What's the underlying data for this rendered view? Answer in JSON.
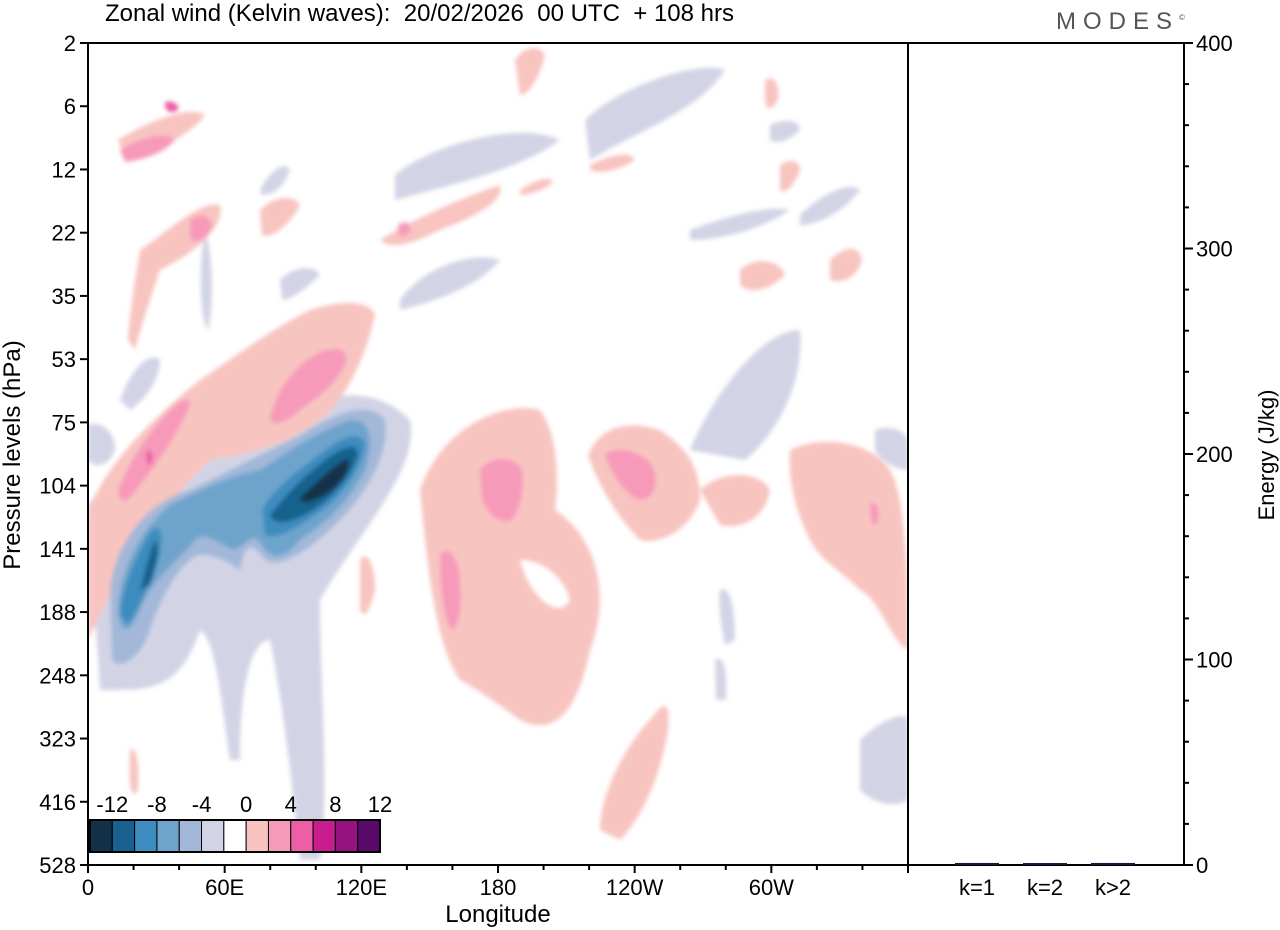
{
  "title": "Zonal wind (Kelvin waves):  20/02/2026  00 UTC  + 108 hrs",
  "logo": "MODES",
  "logo_mark": "©",
  "chart_data": [
    {
      "type": "heatmap",
      "title": "Zonal wind (Kelvin waves):  20/02/2026  00 UTC  + 108 hrs",
      "xlabel": "Longitude",
      "ylabel": "Pressure levels (hPa)",
      "x_ticks": [
        "0",
        "60E",
        "120E",
        "180",
        "120W",
        "60W"
      ],
      "x_tick_values": [
        0,
        60,
        120,
        180,
        240,
        300
      ],
      "xlim": [
        0,
        360
      ],
      "y_ticks": [
        "2",
        "6",
        "12",
        "22",
        "35",
        "53",
        "75",
        "104",
        "141",
        "188",
        "248",
        "323",
        "416",
        "528"
      ],
      "colorbar": {
        "labels": [
          "-12",
          "-8",
          "-4",
          "0",
          "4",
          "8",
          "12"
        ],
        "levels": [
          -14,
          -12,
          -10,
          -8,
          -6,
          -4,
          -2,
          2,
          4,
          6,
          8,
          10,
          12,
          14
        ],
        "colors": [
          "#12324a",
          "#19628f",
          "#3d8cbf",
          "#6ea4cc",
          "#a3b8d8",
          "#d2d4e6",
          "#ffffff",
          "#f8c4c0",
          "#f79aba",
          "#ec5ea6",
          "#c81d8e",
          "#96127e",
          "#5a086a"
        ]
      },
      "features": [
        {
          "name": "negative anomaly band",
          "min_value": -14,
          "lon_range": [
            12,
            130
          ],
          "pressure_range": [
            90,
            250
          ]
        },
        {
          "name": "positive anomaly band",
          "max_value": 8,
          "lon_range": [
            15,
            125
          ],
          "pressure_range": [
            45,
            200
          ]
        },
        {
          "name": "positive anomaly central pacific",
          "max_value": 6,
          "lon_range": [
            140,
            215
          ],
          "pressure_range": [
            80,
            310
          ]
        },
        {
          "name": "positive anomaly east pacific",
          "max_value": 6,
          "lon_range": [
            220,
            280
          ],
          "pressure_range": [
            70,
            140
          ]
        }
      ]
    },
    {
      "type": "bar",
      "categories": [
        "k=1",
        "k=2",
        "k>2"
      ],
      "values": [
        1,
        0.5,
        1
      ],
      "ylabel": "Energy (J/kg)",
      "ylim": [
        0,
        400
      ],
      "y_ticks": [
        "0",
        "100",
        "200",
        "300",
        "400"
      ],
      "y_tick_values": [
        0,
        100,
        200,
        300,
        400
      ]
    }
  ]
}
